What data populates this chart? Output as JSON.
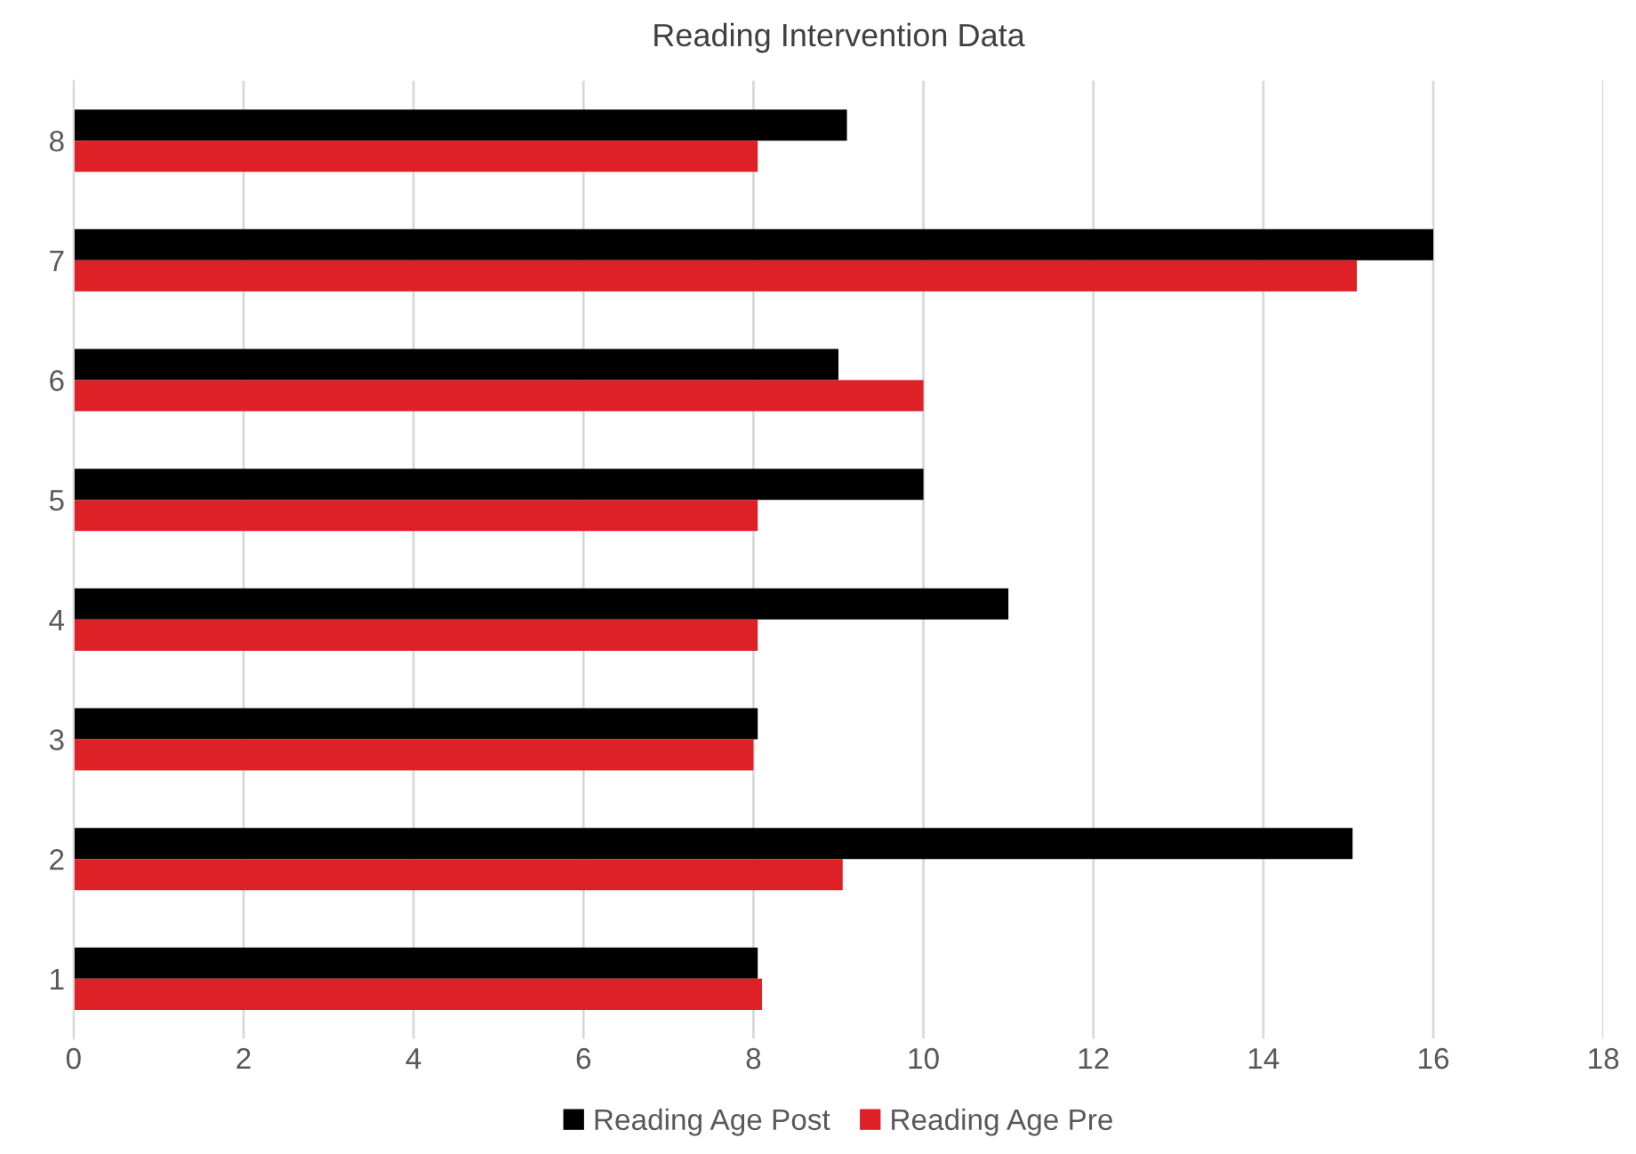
{
  "chart_data": {
    "type": "bar",
    "orientation": "horizontal",
    "title": "Reading Intervention Data",
    "categories": [
      "8",
      "7",
      "6",
      "5",
      "4",
      "3",
      "2",
      "1"
    ],
    "series": [
      {
        "name": "Reading Age Post",
        "color": "#000000",
        "values": [
          9.1,
          16,
          9,
          10,
          11,
          8.05,
          15.05,
          8.05
        ]
      },
      {
        "name": "Reading Age Pre",
        "color": "#de2027",
        "values": [
          8.05,
          15.1,
          10,
          8.05,
          8.05,
          8,
          9.05,
          8.1
        ]
      }
    ],
    "xlim": [
      0,
      18
    ],
    "xticks": [
      0,
      2,
      4,
      6,
      8,
      10,
      12,
      14,
      16,
      18
    ],
    "grid": "x",
    "legend": "bottom"
  }
}
